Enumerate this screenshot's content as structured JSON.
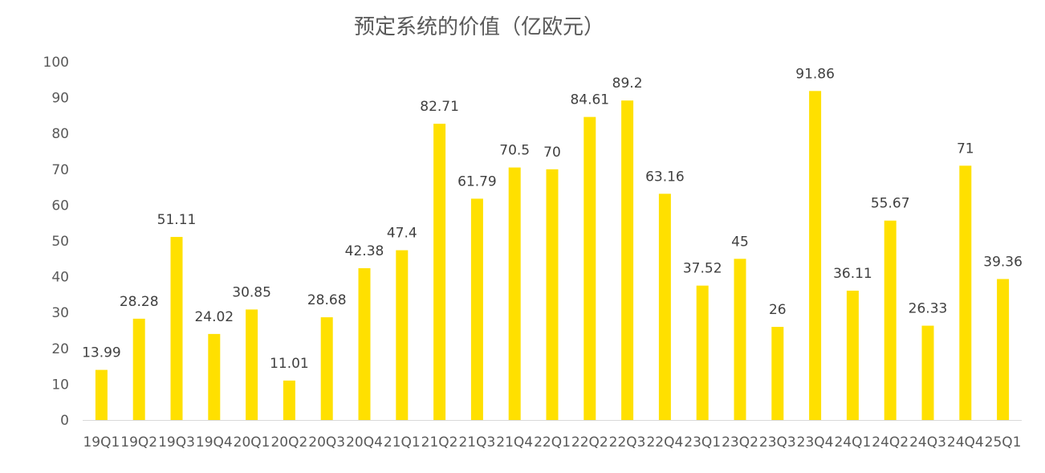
{
  "chart_data": {
    "type": "bar",
    "title": "预定系统的价值（亿欧元）",
    "xlabel": "",
    "ylabel": "",
    "categories": [
      "19Q1",
      "19Q2",
      "19Q3",
      "19Q4",
      "20Q1",
      "20Q2",
      "20Q3",
      "20Q4",
      "21Q1",
      "21Q2",
      "21Q3",
      "21Q4",
      "22Q1",
      "22Q2",
      "22Q3",
      "22Q4",
      "23Q1",
      "23Q2",
      "23Q3",
      "23Q4",
      "24Q1",
      "24Q2",
      "24Q3",
      "24Q4",
      "25Q1"
    ],
    "values": [
      13.99,
      28.28,
      51.11,
      24.02,
      30.85,
      11.01,
      28.68,
      42.38,
      47.4,
      82.71,
      61.79,
      70.5,
      70,
      84.61,
      89.2,
      63.16,
      37.52,
      45,
      26,
      91.86,
      36.11,
      55.67,
      26.33,
      71,
      39.36
    ],
    "data_labels": [
      "13.99",
      "28.28",
      "51.11",
      "24.02",
      "30.85",
      "11.01",
      "28.68",
      "42.38",
      "47.4",
      "82.71",
      "61.79",
      "70.5",
      "70",
      "84.61",
      "89.2",
      "63.16",
      "37.52",
      "45",
      "26",
      "91.86",
      "36.11",
      "55.67",
      "26.33",
      "71",
      "39.36"
    ],
    "yticks": [
      "0",
      "10",
      "20",
      "30",
      "40",
      "50",
      "60",
      "70",
      "80",
      "90",
      "100"
    ],
    "ylim": [
      0,
      100
    ],
    "grid": false,
    "legend": "none",
    "bar_color": "#FFE000",
    "axis_color": "#D9D9D9",
    "text_color": "#595959"
  }
}
